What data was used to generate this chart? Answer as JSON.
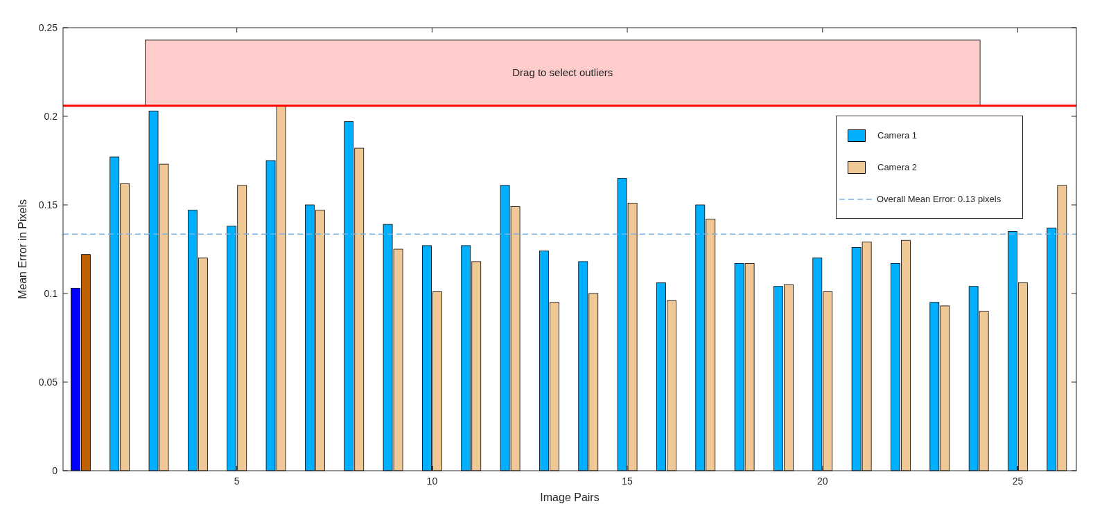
{
  "chart_data": {
    "type": "bar",
    "xlabel": "Image Pairs",
    "ylabel": "Mean Error in Pixels",
    "x": [
      1,
      2,
      3,
      4,
      5,
      6,
      7,
      8,
      9,
      10,
      11,
      12,
      13,
      14,
      15,
      16,
      17,
      18,
      19,
      20,
      21,
      22,
      23,
      24,
      25,
      26
    ],
    "series": [
      {
        "name": "Camera 1",
        "color": "#00b0ff",
        "colors": [
          "#0000ff",
          "#00b0ff",
          "#00b0ff",
          "#00b0ff",
          "#00b0ff",
          "#00b0ff",
          "#00b0ff",
          "#00b0ff",
          "#00b0ff",
          "#00b0ff",
          "#00b0ff",
          "#00b0ff",
          "#00b0ff",
          "#00b0ff",
          "#00b0ff",
          "#00b0ff",
          "#00b0ff",
          "#00b0ff",
          "#00b0ff",
          "#00b0ff",
          "#00b0ff",
          "#00b0ff",
          "#00b0ff",
          "#00b0ff",
          "#00b0ff",
          "#00b0ff"
        ],
        "values": [
          0.103,
          0.177,
          0.203,
          0.147,
          0.138,
          0.175,
          0.15,
          0.197,
          0.139,
          0.127,
          0.127,
          0.161,
          0.124,
          0.118,
          0.165,
          0.106,
          0.15,
          0.117,
          0.104,
          0.12,
          0.126,
          0.117,
          0.095,
          0.104,
          0.135,
          0.137
        ]
      },
      {
        "name": "Camera 2",
        "color": "#f0c896",
        "colors": [
          "#c06000",
          "#f0c896",
          "#f0c896",
          "#f0c896",
          "#f0c896",
          "#f0c896",
          "#f0c896",
          "#f0c896",
          "#f0c896",
          "#f0c896",
          "#f0c896",
          "#f0c896",
          "#f0c896",
          "#f0c896",
          "#f0c896",
          "#f0c896",
          "#f0c896",
          "#f0c896",
          "#f0c896",
          "#f0c896",
          "#f0c896",
          "#f0c896",
          "#f0c896",
          "#f0c896",
          "#f0c896",
          "#f0c896"
        ],
        "values": [
          0.122,
          0.162,
          0.173,
          0.12,
          0.161,
          0.206,
          0.147,
          0.182,
          0.125,
          0.101,
          0.118,
          0.149,
          0.095,
          0.1,
          0.151,
          0.096,
          0.142,
          0.117,
          0.105,
          0.101,
          0.129,
          0.13,
          0.093,
          0.09,
          0.106,
          0.161
        ]
      }
    ],
    "xlim": [
      0.55,
      26.5
    ],
    "xticks": [
      5,
      10,
      15,
      20,
      25
    ],
    "ylim": [
      0,
      0.25
    ],
    "yticks": [
      0,
      0.05,
      0.1,
      0.15,
      0.2,
      0.25
    ],
    "ref_lines": [
      {
        "axis": "y",
        "value": 0.1335,
        "label": "Overall Mean Error: 0.13 pixels",
        "color": "#78b4e6",
        "line_style": "dashed"
      },
      {
        "axis": "y",
        "value": 0.206,
        "color": "#ff0000",
        "line_style": "solid"
      }
    ],
    "bands": [
      {
        "axis": "y",
        "from": 0.206,
        "to": 0.243,
        "label": "Drag to select outliers",
        "color": "#ffcccc"
      }
    ],
    "legend": "top right",
    "grid": false
  }
}
